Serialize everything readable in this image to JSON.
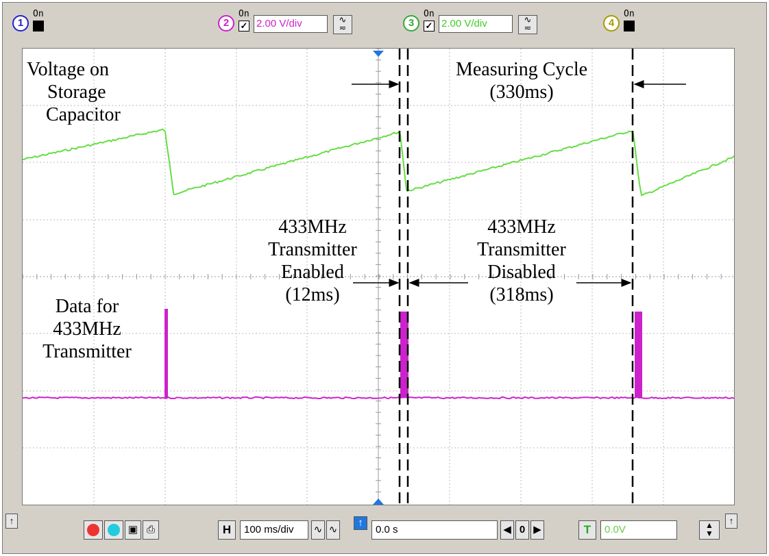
{
  "channels": [
    {
      "number": "1",
      "on_label": "On",
      "color": "#2222cc",
      "enabled": false
    },
    {
      "number": "2",
      "on_label": "On",
      "color": "#cc22cc",
      "enabled": true,
      "volts_per_div": "2.00 V/div",
      "coupling": "~ ≂"
    },
    {
      "number": "3",
      "on_label": "On",
      "color": "#33aa33",
      "enabled": true,
      "volts_per_div": "2.00 V/div",
      "coupling": "~ ≂"
    },
    {
      "number": "4",
      "on_label": "On",
      "color": "#aa9900",
      "enabled": false
    }
  ],
  "annotations": {
    "voltage_label": [
      "Voltage on",
      "Storage",
      "Capacitor"
    ],
    "measuring_cycle": [
      "Measuring Cycle",
      "(330ms)"
    ],
    "tx_enabled": [
      "433MHz",
      "Transmitter",
      "Enabled",
      "(12ms)"
    ],
    "tx_disabled": [
      "433MHz",
      "Transmitter",
      "Disabled",
      "(318ms)"
    ],
    "data_label": [
      "Data for",
      "433MHz",
      "Transmitter"
    ]
  },
  "trace_colors": {
    "capacitor": "#66dd44",
    "data": "#cc22cc"
  },
  "toolbar": {
    "horizontal_button": "H",
    "time_per_div": "100 ms/div",
    "delay": "0.0 s",
    "nav_value": "0",
    "trigger_button": "T",
    "trigger_level": "0.0V"
  }
}
